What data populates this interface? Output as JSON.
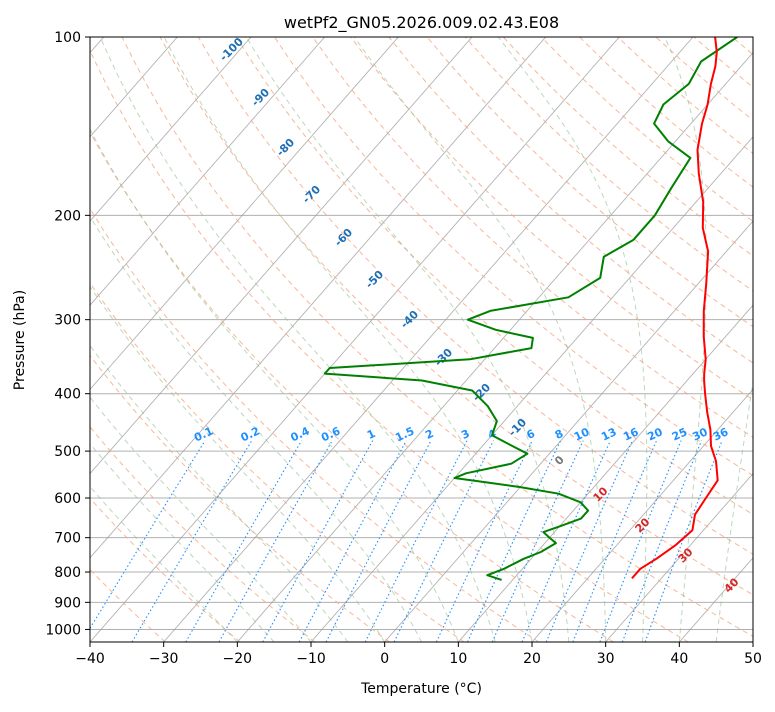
{
  "chart_data": {
    "type": "skew-t",
    "title": "wetPf2_GN05.2026.009.02.43.E08",
    "xlabel": "Temperature (°C)",
    "ylabel": "Pressure (hPa)",
    "xlim": [
      -40,
      50
    ],
    "ylim": [
      1050,
      100
    ],
    "x_ticks": [
      "−40",
      "−30",
      "−20",
      "−10",
      "0",
      "10",
      "20",
      "30",
      "40",
      "50"
    ],
    "y_ticks": [
      {
        "p": 100,
        "label": "100"
      },
      {
        "p": 200,
        "label": "200"
      },
      {
        "p": 300,
        "label": "300"
      },
      {
        "p": 400,
        "label": "400"
      },
      {
        "p": 500,
        "label": "500"
      },
      {
        "p": 600,
        "label": "600"
      },
      {
        "p": 700,
        "label": "700"
      },
      {
        "p": 800,
        "label": "800"
      },
      {
        "p": 900,
        "label": "900"
      },
      {
        "p": 1000,
        "label": "1000"
      }
    ],
    "temperature_profile": {
      "name": "Temperature",
      "color": "#ff0000",
      "points": [
        [
          820,
          26
        ],
        [
          790,
          26
        ],
        [
          760,
          27
        ],
        [
          720,
          28
        ],
        [
          680,
          28.5
        ],
        [
          640,
          27
        ],
        [
          600,
          26.5
        ],
        [
          560,
          26
        ],
        [
          520,
          23.5
        ],
        [
          490,
          21
        ],
        [
          460,
          19
        ],
        [
          430,
          16.5
        ],
        [
          400,
          14
        ],
        [
          380,
          12.3
        ],
        [
          370,
          11.5
        ],
        [
          350,
          10
        ],
        [
          320,
          7
        ],
        [
          290,
          4
        ],
        [
          260,
          1
        ],
        [
          230,
          -2.5
        ],
        [
          210,
          -6
        ],
        [
          190,
          -9
        ],
        [
          170,
          -13
        ],
        [
          155,
          -16
        ],
        [
          140,
          -18.5
        ],
        [
          130,
          -20
        ],
        [
          120,
          -22
        ],
        [
          112,
          -23.5
        ],
        [
          106,
          -25
        ],
        [
          100,
          -27
        ]
      ]
    },
    "dewpoint_profile": {
      "name": "Dewpoint",
      "color": "#008000",
      "points": [
        [
          825,
          8.5
        ],
        [
          810,
          6
        ],
        [
          790,
          7.5
        ],
        [
          760,
          9
        ],
        [
          740,
          10.5
        ],
        [
          715,
          11.5
        ],
        [
          700,
          10
        ],
        [
          685,
          8.5
        ],
        [
          670,
          10
        ],
        [
          650,
          12
        ],
        [
          630,
          12
        ],
        [
          610,
          10
        ],
        [
          590,
          6
        ],
        [
          575,
          0
        ],
        [
          565,
          -5
        ],
        [
          555,
          -10
        ],
        [
          545,
          -9
        ],
        [
          525,
          -4
        ],
        [
          505,
          -3
        ],
        [
          490,
          -6
        ],
        [
          470,
          -10
        ],
        [
          445,
          -11
        ],
        [
          420,
          -14
        ],
        [
          395,
          -18
        ],
        [
          380,
          -26
        ],
        [
          370,
          -40
        ],
        [
          362,
          -40
        ],
        [
          350,
          -22
        ],
        [
          335,
          -15
        ],
        [
          322,
          -16
        ],
        [
          312,
          -22
        ],
        [
          300,
          -27
        ],
        [
          290,
          -25
        ],
        [
          275,
          -16
        ],
        [
          255,
          -14
        ],
        [
          235,
          -16
        ],
        [
          220,
          -14
        ],
        [
          200,
          -14
        ],
        [
          180,
          -15
        ],
        [
          160,
          -16
        ],
        [
          150,
          -21
        ],
        [
          140,
          -25
        ],
        [
          130,
          -26
        ],
        [
          120,
          -25
        ],
        [
          110,
          -26
        ],
        [
          100,
          -24
        ]
      ]
    },
    "mixing_ratio_labels": [
      "0.1",
      "0.2",
      "0.4",
      "0.6",
      "1",
      "1.5",
      "2",
      "3",
      "4",
      "6",
      "8",
      "10",
      "13",
      "16",
      "20",
      "25",
      "30",
      "36"
    ],
    "dry_adiabat_labels": [
      "-100",
      "-90",
      "-80",
      "-70",
      "-60",
      "-50",
      "-40",
      "-30",
      "-20",
      "-10",
      "0",
      "10",
      "20",
      "30",
      "40"
    ],
    "colors": {
      "grid": "#b0b0b0",
      "isotherm": "#999999",
      "dry_adiabat": "#f4a582",
      "moist_adiabat": "#8fbc8f",
      "mixing_ratio": "#1e90ff",
      "label_cold": "#1f6fb4",
      "label_warm": "#d62728"
    }
  }
}
